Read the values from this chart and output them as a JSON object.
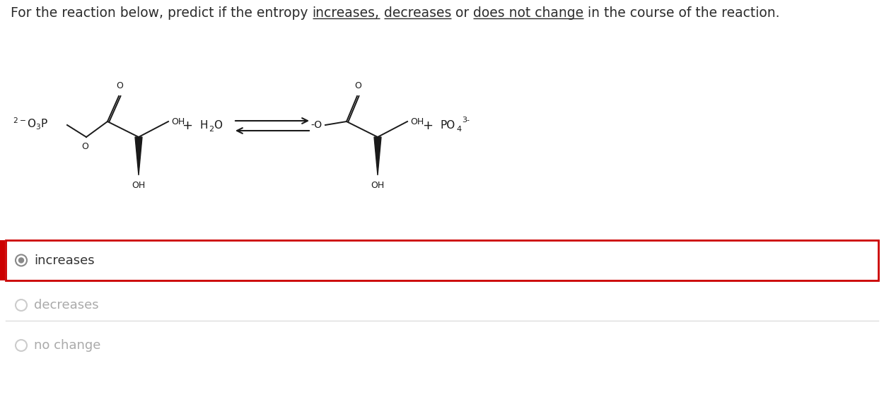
{
  "bg_color": "#ffffff",
  "text_color": "#2d2d2d",
  "mol_color": "#1a1a1a",
  "light_text_color": "#aaaaaa",
  "radio_selected_color": "#888888",
  "radio_unselected_color": "#cccccc",
  "selected_box_color": "#cc0000",
  "divider_color": "#dddddd",
  "options": [
    "increases",
    "decreases",
    "no change"
  ],
  "selected_index": 0,
  "title_fontsize": 13.5,
  "option_fontsize": 13,
  "chem_fontsize": 10
}
